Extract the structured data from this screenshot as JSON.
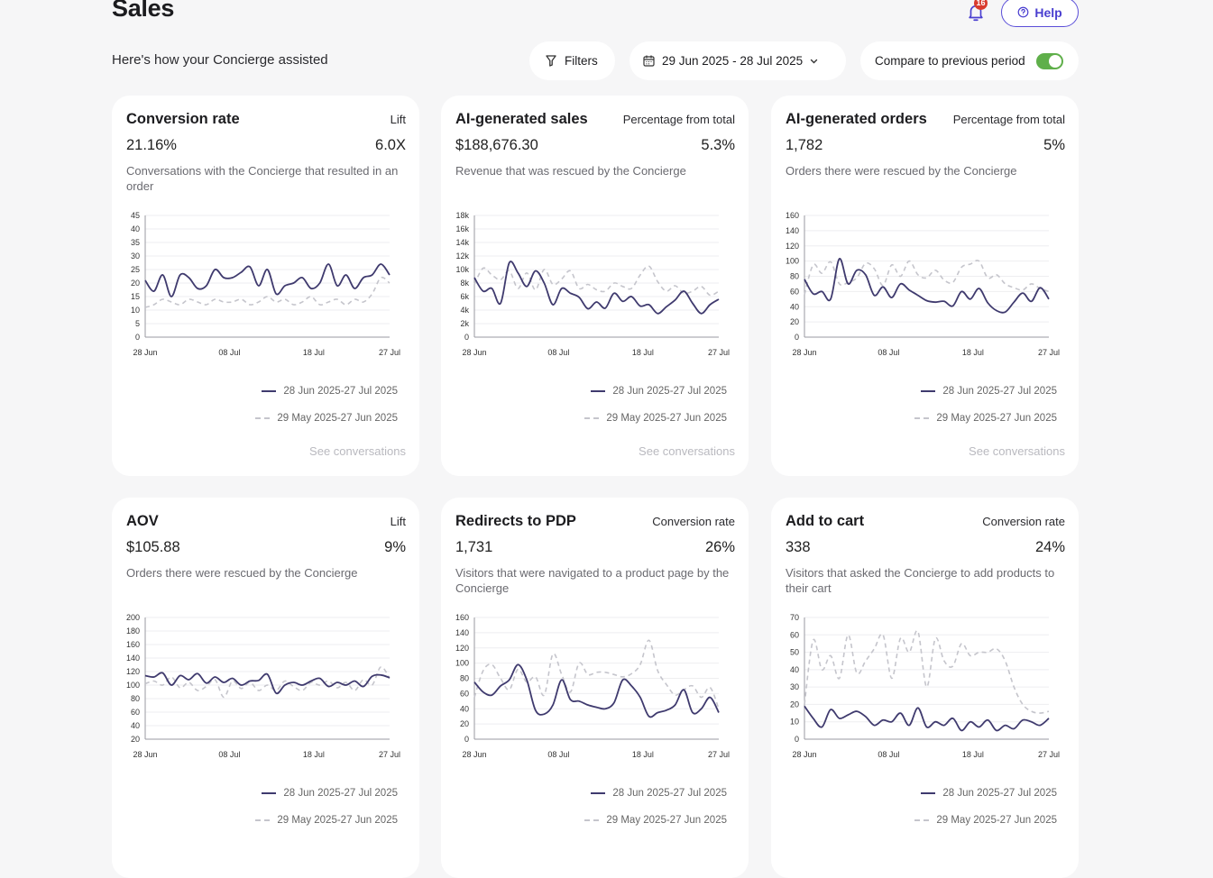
{
  "page": {
    "title": "Sales",
    "subtitle": "Here's how your Concierge assisted",
    "notification_count": "16",
    "help_label": "Help"
  },
  "toolbar": {
    "filters_label": "Filters",
    "date_range": "29 Jun 2025 - 28 Jul 2025",
    "compare_label": "Compare to previous period",
    "compare_enabled": true
  },
  "colors": {
    "accent": "#4a3fd0",
    "current_series": "#3f3a6e",
    "previous_series": "#c5c5cc",
    "toggle_on": "#5faf4a",
    "badge": "#d93b2e"
  },
  "icons": [
    "bell-icon",
    "help-circle-icon",
    "filter-icon",
    "calendar-icon",
    "chevron-down-icon"
  ],
  "legend": {
    "current": "28 Jun 2025-27 Jul 2025",
    "previous": "29 May 2025-27 Jun 2025"
  },
  "cards": [
    {
      "title": "Conversion rate",
      "metric_label": "Lift",
      "value": "21.16%",
      "metric_value": "6.0X",
      "description": "Conversations with the Concierge that resulted in an order",
      "link": "See conversations"
    },
    {
      "title": "AI-generated sales",
      "metric_label": "Percentage from total",
      "value": "$188,676.30",
      "metric_value": "5.3%",
      "description": "Revenue that was rescued by the Concierge",
      "link": "See conversations"
    },
    {
      "title": "AI-generated orders",
      "metric_label": "Percentage from total",
      "value": "1,782",
      "metric_value": "5%",
      "description": "Orders there were rescued by the Concierge",
      "link": "See conversations"
    },
    {
      "title": "AOV",
      "metric_label": "Lift",
      "value": "$105.88",
      "metric_value": "9%",
      "description": "Orders there were rescued by the Concierge"
    },
    {
      "title": "Redirects to PDP",
      "metric_label": "Conversion rate",
      "value": "1,731",
      "metric_value": "26%",
      "description": "Visitors that were navigated to a product page by the Concierge"
    },
    {
      "title": "Add to cart",
      "metric_label": "Conversion rate",
      "value": "338",
      "metric_value": "24%",
      "description": "Visitors that asked the Concierge to add products to their cart"
    }
  ],
  "chart_data": [
    {
      "type": "line",
      "x_ticks": [
        "28 Jun",
        "08 Jul",
        "18 Jul",
        "27 Jul"
      ],
      "y_ticks": [
        "0",
        "5",
        "10",
        "15",
        "20",
        "25",
        "30",
        "35",
        "40",
        "45"
      ],
      "ylim": [
        0,
        45
      ],
      "series": [
        {
          "name": "28 Jun 2025-27 Jul 2025",
          "values": [
            21,
            17,
            23,
            15,
            23,
            22,
            18,
            19,
            25,
            22,
            22,
            24,
            26,
            19,
            25,
            16,
            19,
            20,
            22,
            18,
            20,
            27,
            19,
            23,
            18,
            22,
            23,
            27,
            23
          ]
        },
        {
          "name": "29 May 2025-27 Jun 2025",
          "values": [
            11,
            12,
            14,
            13,
            12,
            14,
            13,
            12,
            14,
            13,
            13,
            14,
            12,
            13,
            15,
            13,
            14,
            12,
            13,
            15,
            12,
            13,
            14,
            12,
            14,
            13,
            16,
            22,
            20
          ]
        }
      ]
    },
    {
      "type": "line",
      "x_ticks": [
        "28 Jun",
        "08 Jul",
        "18 Jul",
        "27 Jul"
      ],
      "y_ticks": [
        "0",
        "2k",
        "4k",
        "6k",
        "8k",
        "10k",
        "12k",
        "14k",
        "16k",
        "18k"
      ],
      "ylim": [
        0,
        18000
      ],
      "series": [
        {
          "name": "28 Jun 2025-27 Jul 2025",
          "values": [
            8800,
            6800,
            7200,
            5000,
            11000,
            9500,
            7500,
            9800,
            8000,
            4800,
            7200,
            6500,
            5900,
            4200,
            5200,
            4300,
            6500,
            5300,
            6000,
            4600,
            4800,
            3500,
            4500,
            5500,
            6800,
            5000,
            3500,
            4800,
            5600
          ]
        },
        {
          "name": "29 May 2025-27 Jun 2025",
          "values": [
            7800,
            10200,
            9200,
            8500,
            9800,
            7200,
            9500,
            7000,
            10000,
            7800,
            8600,
            9800,
            7200,
            7800,
            7000,
            6800,
            8000,
            7500,
            7200,
            9200,
            10500,
            8200,
            6800,
            7600,
            6500,
            6800,
            7500,
            6200,
            6800
          ]
        }
      ]
    },
    {
      "type": "line",
      "x_ticks": [
        "28 Jun",
        "08 Jul",
        "18 Jul",
        "27 Jul"
      ],
      "y_ticks": [
        "0",
        "20",
        "40",
        "60",
        "80",
        "100",
        "120",
        "140",
        "160"
      ],
      "ylim": [
        0,
        160
      ],
      "series": [
        {
          "name": "28 Jun 2025-27 Jul 2025",
          "values": [
            76,
            57,
            60,
            50,
            103,
            70,
            88,
            82,
            55,
            66,
            52,
            70,
            62,
            55,
            48,
            46,
            47,
            41,
            60,
            50,
            64,
            45,
            35,
            33,
            46,
            58,
            47,
            65,
            50
          ]
        },
        {
          "name": "29 May 2025-27 Jun 2025",
          "values": [
            56,
            95,
            84,
            99,
            70,
            72,
            78,
            97,
            90,
            68,
            95,
            80,
            100,
            82,
            78,
            88,
            75,
            72,
            92,
            96,
            100,
            78,
            82,
            70,
            65,
            62,
            70,
            64,
            60
          ]
        }
      ]
    },
    {
      "type": "line",
      "x_ticks": [
        "28 Jun",
        "08 Jul",
        "18 Jul",
        "27 Jul"
      ],
      "y_ticks": [
        "20",
        "40",
        "60",
        "80",
        "100",
        "120",
        "140",
        "160",
        "180",
        "200"
      ],
      "ylim": [
        20,
        200
      ],
      "series": [
        {
          "name": "28 Jun 2025-27 Jul 2025",
          "values": [
            114,
            112,
            118,
            100,
            114,
            108,
            117,
            103,
            112,
            104,
            110,
            100,
            106,
            107,
            116,
            88,
            100,
            104,
            100,
            106,
            110,
            98,
            104,
            100,
            106,
            98,
            113,
            115,
            111
          ]
        },
        {
          "name": "29 May 2025-27 Jun 2025",
          "values": [
            102,
            106,
            100,
            112,
            96,
            104,
            92,
            98,
            108,
            82,
            106,
            95,
            104,
            92,
            100,
            92,
            106,
            98,
            92,
            104,
            100,
            106,
            96,
            104,
            92,
            108,
            100,
            127,
            110
          ]
        }
      ]
    },
    {
      "type": "line",
      "x_ticks": [
        "28 Jun",
        "08 Jul",
        "18 Jul",
        "27 Jul"
      ],
      "y_ticks": [
        "0",
        "20",
        "40",
        "60",
        "80",
        "100",
        "120",
        "140",
        "160"
      ],
      "ylim": [
        0,
        160
      ],
      "series": [
        {
          "name": "28 Jun 2025-27 Jul 2025",
          "values": [
            75,
            62,
            58,
            70,
            78,
            98,
            78,
            38,
            33,
            45,
            78,
            52,
            50,
            45,
            42,
            40,
            48,
            78,
            70,
            55,
            30,
            35,
            38,
            45,
            65,
            35,
            40,
            55,
            35
          ]
        },
        {
          "name": "29 May 2025-27 Jun 2025",
          "values": [
            55,
            90,
            98,
            80,
            65,
            92,
            75,
            82,
            58,
            112,
            85,
            62,
            100,
            85,
            88,
            88,
            85,
            82,
            86,
            98,
            130,
            90,
            72,
            58,
            65,
            70,
            55,
            68,
            40
          ]
        }
      ]
    },
    {
      "type": "line",
      "x_ticks": [
        "28 Jun",
        "08 Jul",
        "18 Jul",
        "27 Jul"
      ],
      "y_ticks": [
        "0",
        "10",
        "20",
        "30",
        "40",
        "50",
        "60",
        "70"
      ],
      "ylim": [
        0,
        70
      ],
      "series": [
        {
          "name": "28 Jun 2025-27 Jul 2025",
          "values": [
            19,
            12,
            7,
            17,
            12,
            14,
            16,
            13,
            8,
            11,
            10,
            15,
            8,
            18,
            7,
            10,
            8,
            12,
            5,
            10,
            7,
            11,
            5,
            8,
            6,
            11,
            10,
            8,
            12
          ]
        },
        {
          "name": "29 May 2025-27 Jun 2025",
          "values": [
            20,
            57,
            40,
            48,
            35,
            60,
            38,
            45,
            52,
            60,
            35,
            58,
            50,
            62,
            30,
            58,
            45,
            42,
            55,
            48,
            50,
            50,
            52,
            45,
            30,
            20,
            16,
            15,
            16
          ]
        }
      ]
    }
  ]
}
